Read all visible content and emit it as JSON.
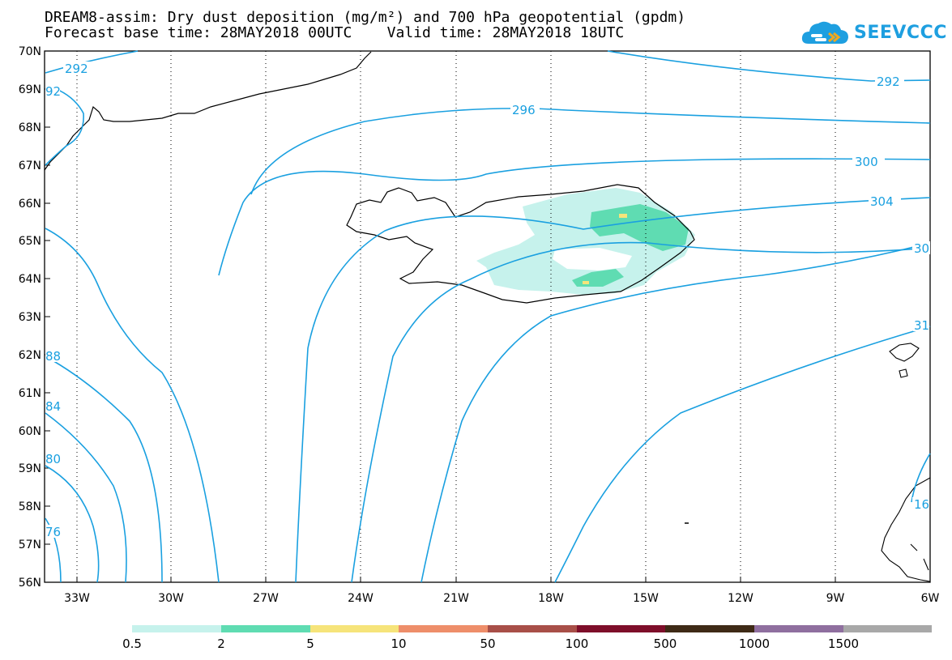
{
  "title": {
    "line1": "DREAM8-assim: Dry dust deposition (mg/m²) and 700 hPa geopotential (gpdm)",
    "line2": "Forecast base time: 28MAY2018 00UTC    Valid time: 28MAY2018 18UTC"
  },
  "logo": {
    "text": "SEEVCCC",
    "icon": "cloud-icon",
    "color": "#1e9fe0"
  },
  "map": {
    "lat_labels": [
      "70N",
      "69N",
      "68N",
      "67N",
      "66N",
      "65N",
      "64N",
      "63N",
      "62N",
      "61N",
      "60N",
      "59N",
      "58N",
      "57N",
      "56N"
    ],
    "lon_labels": [
      "33W",
      "30W",
      "27W",
      "24W",
      "21W",
      "18W",
      "15W",
      "12W",
      "9W",
      "6W"
    ],
    "contour_color": "#1aa0e0",
    "contour_labels": [
      "292",
      "92",
      "296",
      "300",
      "304",
      "30",
      "292",
      "88",
      "84",
      "80",
      "76",
      "31",
      "16"
    ]
  },
  "legend": {
    "colors": [
      "#c6f2ec",
      "#5fdcb2",
      "#f6e47a",
      "#ee8e6a",
      "#a84f48",
      "#7e0e2a",
      "#3e2a16",
      "#8f6f9f",
      "#a8a8a8"
    ],
    "labels": [
      "0.5",
      "2",
      "5",
      "10",
      "50",
      "100",
      "500",
      "1000",
      "1500"
    ]
  }
}
